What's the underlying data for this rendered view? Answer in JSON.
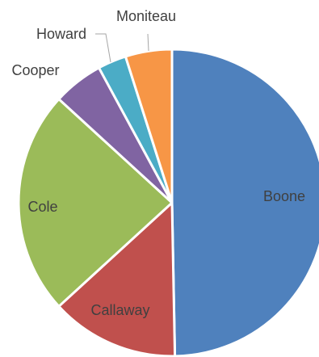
{
  "chart_data": {
    "type": "pie",
    "title": "",
    "legend": "none",
    "start_angle_deg": 0,
    "direction": "clockwise",
    "slices": [
      {
        "label": "Boone",
        "value": 49.7,
        "color": "#4f81bd"
      },
      {
        "label": "Callaway",
        "value": 13.5,
        "color": "#c0504d"
      },
      {
        "label": "Cole",
        "value": 23.6,
        "color": "#9bbb59"
      },
      {
        "label": "Cooper",
        "value": 5.3,
        "color": "#8064a2"
      },
      {
        "label": "Howard",
        "value": 3.0,
        "color": "#4bacc6"
      },
      {
        "label": "Moniteau",
        "value": 4.9,
        "color": "#f79646"
      }
    ]
  }
}
